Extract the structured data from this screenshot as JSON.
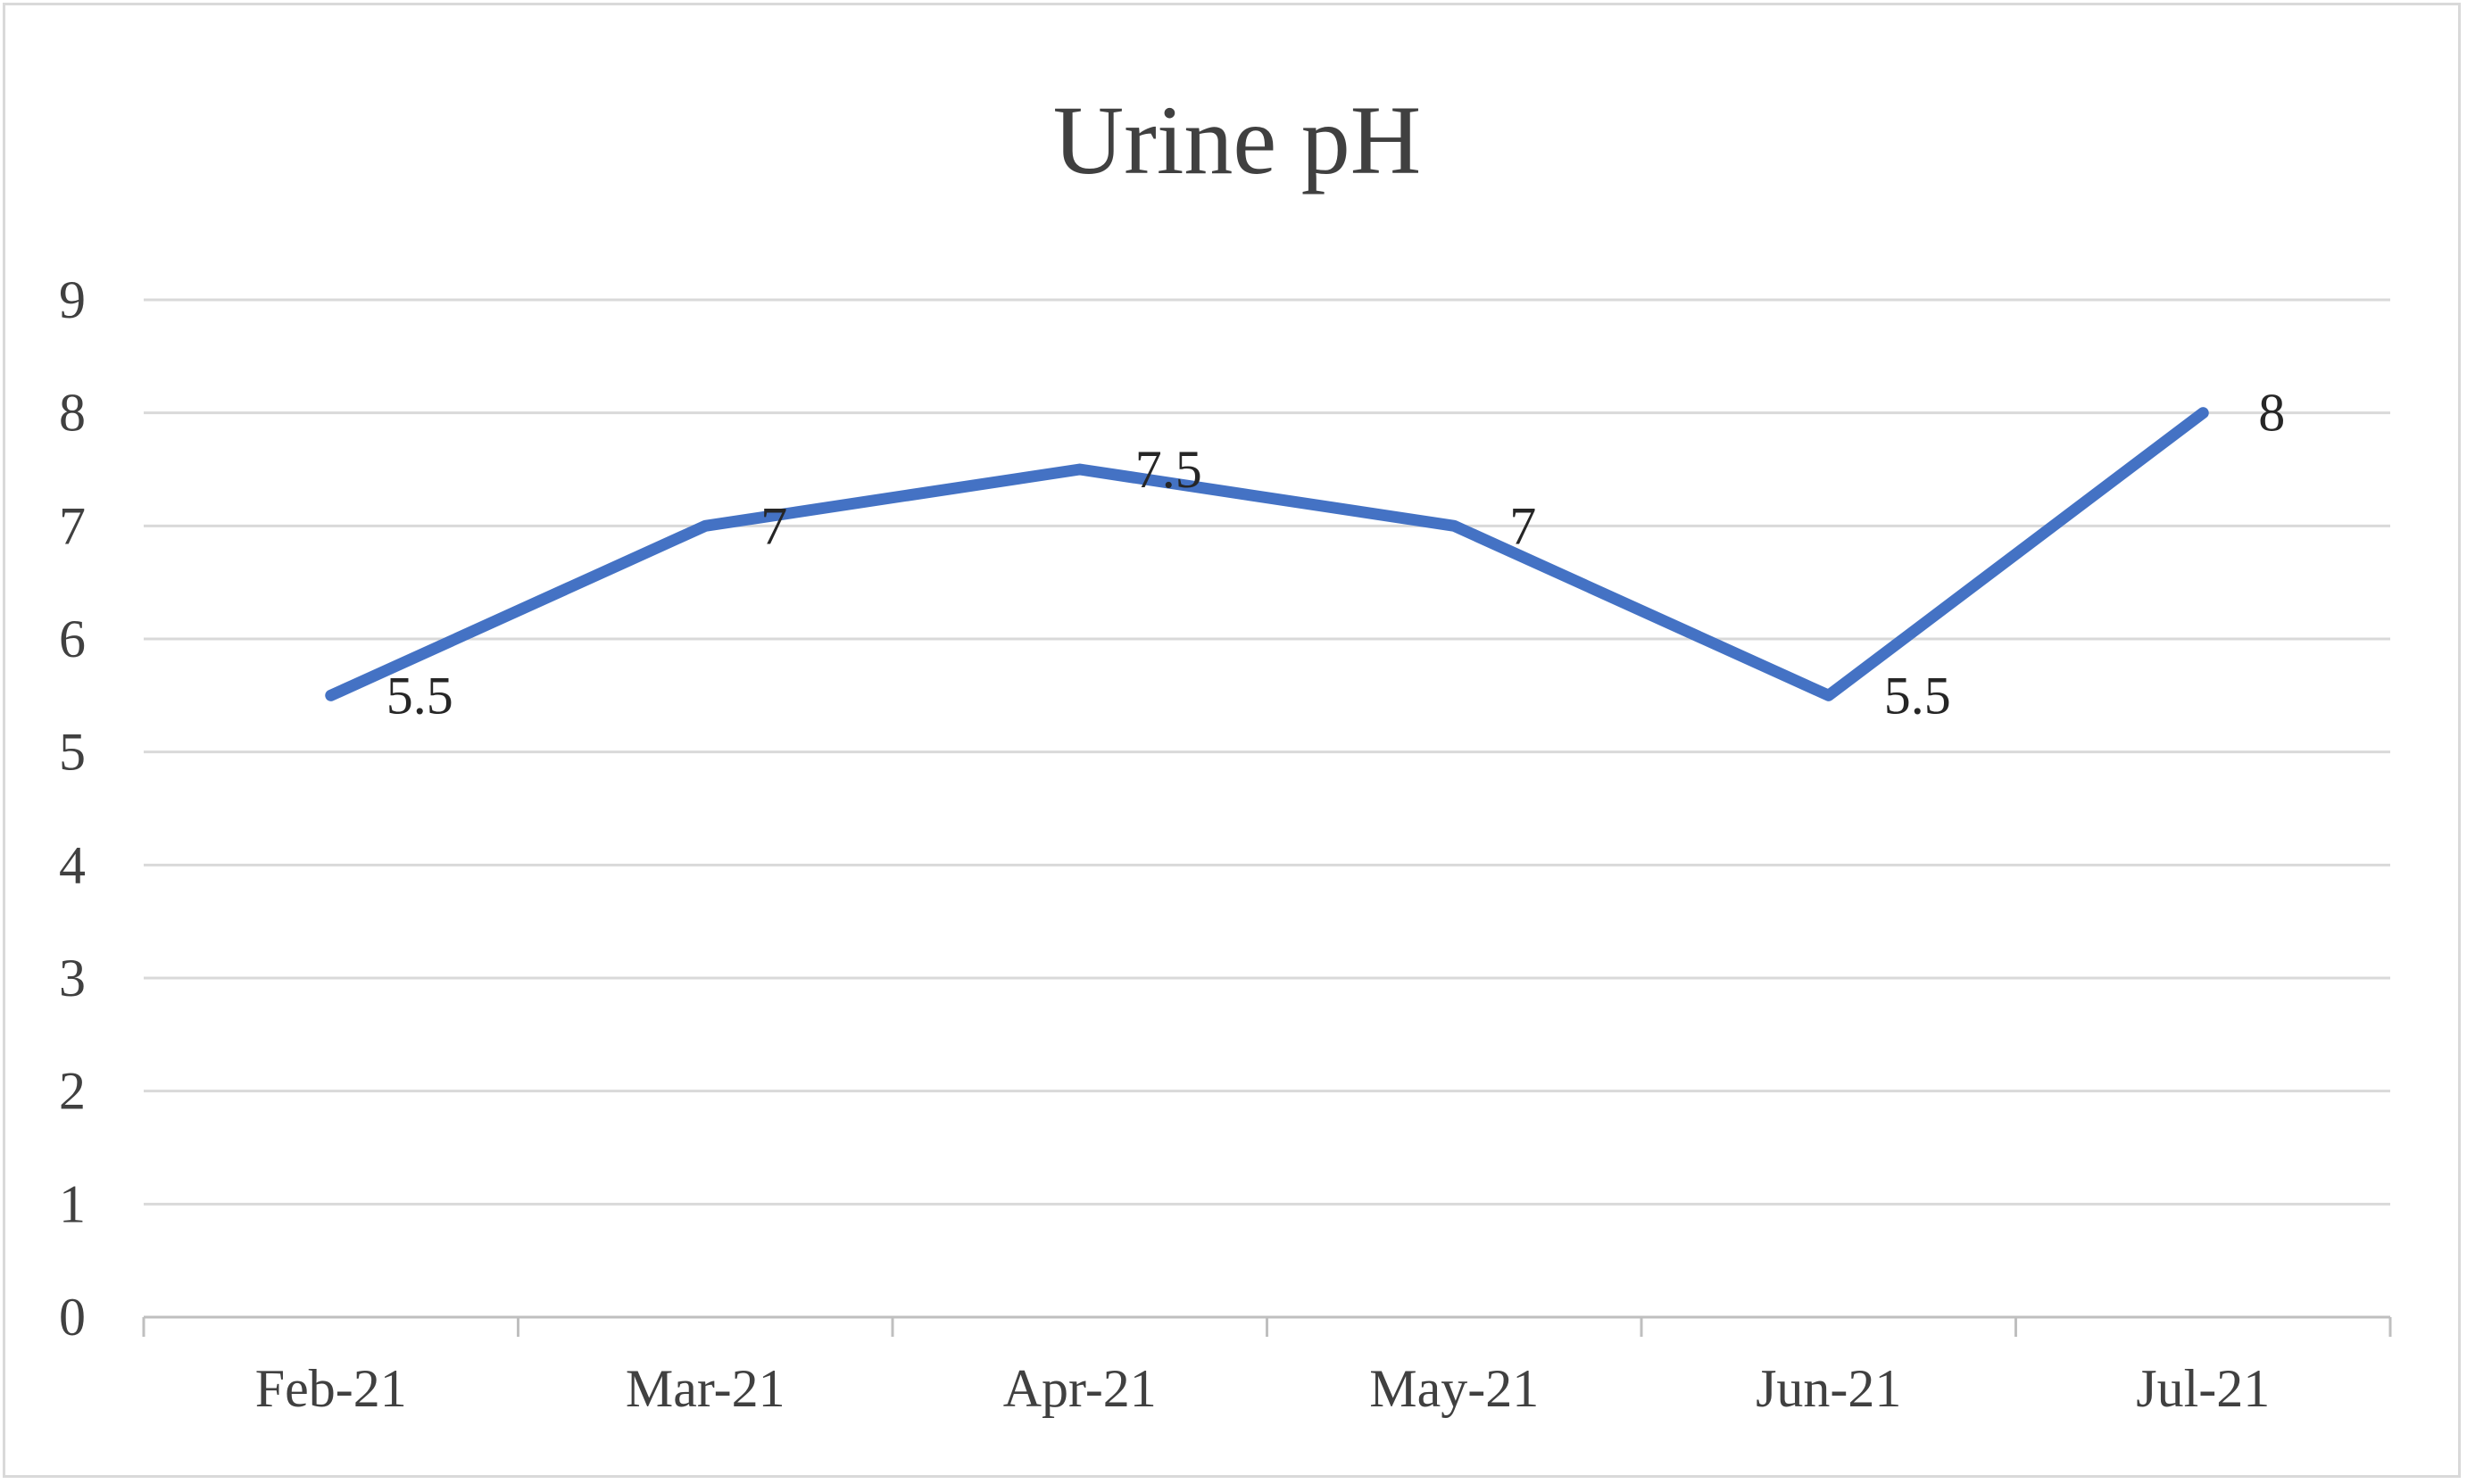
{
  "chart_data": {
    "type": "line",
    "title": "Urine pH",
    "xlabel": "",
    "ylabel": "",
    "categories": [
      "Feb-21",
      "Mar-21",
      "Apr-21",
      "May-21",
      "Jun-21",
      "Jul-21"
    ],
    "series": [
      {
        "values": [
          5.5,
          7,
          7.5,
          7,
          5.5,
          8
        ],
        "data_labels": [
          "5.5",
          "7",
          "7.5",
          "7",
          "5.5",
          "8"
        ],
        "color": "#4472c4"
      }
    ],
    "ylim": [
      0,
      9
    ],
    "yticks": [
      "0",
      "1",
      "2",
      "3",
      "4",
      "5",
      "6",
      "7",
      "8",
      "9"
    ],
    "grid": true,
    "legend": "none"
  }
}
